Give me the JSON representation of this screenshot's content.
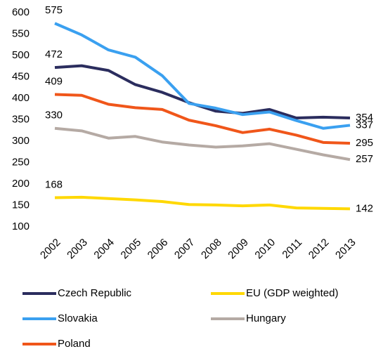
{
  "chart_data": {
    "type": "line",
    "x": [
      "2002",
      "2003",
      "2004",
      "2005",
      "2006",
      "2007",
      "2008",
      "2009",
      "2010",
      "2011",
      "2012",
      "2013"
    ],
    "series": [
      {
        "name": "Czech Republic",
        "color": "#2b2d5e",
        "values": [
          472,
          476,
          465,
          432,
          414,
          390,
          370,
          365,
          374,
          354,
          356,
          354
        ]
      },
      {
        "name": "EU (GDP weighted)",
        "color": "#ffd800",
        "values": [
          168,
          169,
          166,
          163,
          159,
          152,
          151,
          149,
          151,
          144,
          143,
          142
        ]
      },
      {
        "name": "Slovakia",
        "color": "#3aa0f0",
        "values": [
          575,
          548,
          513,
          496,
          453,
          388,
          377,
          362,
          368,
          348,
          330,
          337
        ]
      },
      {
        "name": "Hungary",
        "color": "#b5aaa4",
        "values": [
          330,
          324,
          307,
          311,
          298,
          291,
          286,
          289,
          294,
          281,
          268,
          257
        ]
      },
      {
        "name": "Poland",
        "color": "#f0561a",
        "values": [
          409,
          407,
          386,
          378,
          374,
          349,
          336,
          320,
          328,
          314,
          297,
          295
        ]
      }
    ],
    "ylim": [
      100,
      600
    ],
    "yticks": [
      100,
      150,
      200,
      250,
      300,
      350,
      400,
      450,
      500,
      550,
      600
    ],
    "grid": false
  }
}
